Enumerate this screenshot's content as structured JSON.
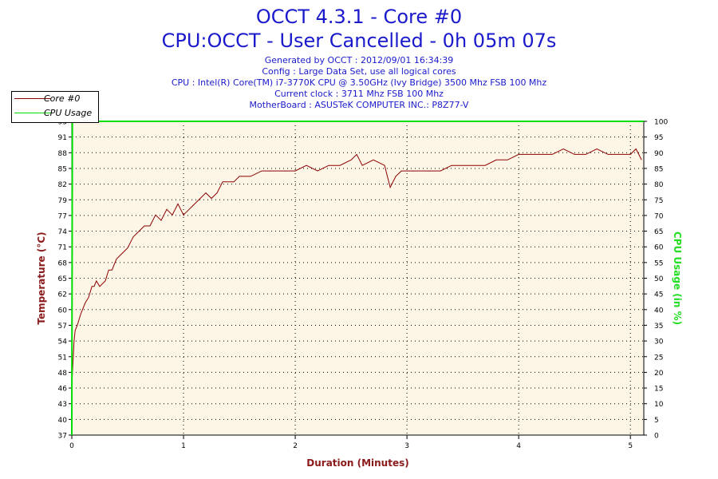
{
  "header": {
    "title_line1": "OCCT 4.3.1 - Core #0",
    "title_line2": "CPU:OCCT - User Cancelled - 0h 05m 07s",
    "info_lines": [
      "Generated by OCCT : 2012/09/01 16:34:39",
      "Config : Large Data Set, use all logical cores",
      "CPU : Intel(R) Core(TM) i7-3770K CPU @ 3.50GHz (Ivy Bridge) 3500 Mhz FSB 100 Mhz",
      "Current clock : 3711 Mhz FSB 100 Mhz",
      "MotherBoard : ASUSTeK COMPUTER INC.: P8Z77-V"
    ]
  },
  "colors": {
    "title": "#1a1acc",
    "core_line": "#8b0000",
    "cpu_usage_line": "#00dd00",
    "plot_bg": "#fdf5e6",
    "axis_label_left": "#8b1a1a",
    "axis_label_right": "#22dd22"
  },
  "legend": {
    "items": [
      {
        "label": "Core #0",
        "color": "#8b0000"
      },
      {
        "label": "CPU Usage",
        "color": "#00dd00"
      }
    ]
  },
  "chart_data": {
    "type": "line",
    "xlabel": "Duration (Minutes)",
    "ylabel": "Temperature (°C)",
    "y2label": "CPU Usage (in %)",
    "xlim": [
      0,
      5.12
    ],
    "ylim": [
      37,
      94
    ],
    "y2lim": [
      0,
      100
    ],
    "x_ticks": [
      "0",
      "1",
      "2",
      "3",
      "4",
      "5"
    ],
    "y_ticks": [
      "37",
      "40",
      "43",
      "46",
      "48",
      "51",
      "54",
      "57",
      "60",
      "62",
      "65",
      "68",
      "71",
      "74",
      "77",
      "79",
      "82",
      "85",
      "88",
      "91",
      "93"
    ],
    "y2_ticks": [
      "0",
      "5",
      "10",
      "15",
      "20",
      "25",
      "30",
      "35",
      "40",
      "45",
      "50",
      "55",
      "60",
      "65",
      "70",
      "75",
      "80",
      "85",
      "90",
      "95",
      "100"
    ],
    "grid": true,
    "legend_position": "top-left",
    "series": [
      {
        "name": "Core #0",
        "axis": "left",
        "x": [
          0.0,
          0.02,
          0.03,
          0.05,
          0.08,
          0.12,
          0.15,
          0.18,
          0.2,
          0.22,
          0.25,
          0.3,
          0.33,
          0.36,
          0.4,
          0.45,
          0.5,
          0.55,
          0.6,
          0.65,
          0.7,
          0.75,
          0.8,
          0.85,
          0.9,
          0.95,
          1.0,
          1.05,
          1.1,
          1.15,
          1.2,
          1.25,
          1.3,
          1.35,
          1.4,
          1.45,
          1.5,
          1.55,
          1.6,
          1.7,
          1.8,
          1.9,
          2.0,
          2.1,
          2.2,
          2.3,
          2.4,
          2.5,
          2.55,
          2.6,
          2.7,
          2.8,
          2.85,
          2.9,
          2.95,
          3.0,
          3.1,
          3.2,
          3.3,
          3.4,
          3.5,
          3.6,
          3.7,
          3.8,
          3.9,
          4.0,
          4.1,
          4.2,
          4.3,
          4.4,
          4.5,
          4.6,
          4.7,
          4.8,
          4.9,
          5.0,
          5.05,
          5.1
        ],
        "y": [
          46,
          54,
          56,
          57,
          59,
          61,
          62,
          64,
          64,
          65,
          64,
          65,
          67,
          67,
          69,
          70,
          71,
          73,
          74,
          75,
          75,
          77,
          76,
          78,
          77,
          79,
          77,
          78,
          79,
          80,
          81,
          80,
          81,
          83,
          83,
          83,
          84,
          84,
          84,
          85,
          85,
          85,
          85,
          86,
          85,
          86,
          86,
          87,
          88,
          86,
          87,
          86,
          82,
          84,
          85,
          85,
          85,
          85,
          85,
          86,
          86,
          86,
          86,
          87,
          87,
          88,
          88,
          88,
          88,
          89,
          88,
          88,
          89,
          88,
          88,
          88,
          89,
          87
        ]
      },
      {
        "name": "CPU Usage",
        "axis": "right",
        "x": [
          0.0,
          0.005,
          0.01,
          5.12
        ],
        "y": [
          0,
          100,
          100,
          100
        ]
      }
    ]
  }
}
